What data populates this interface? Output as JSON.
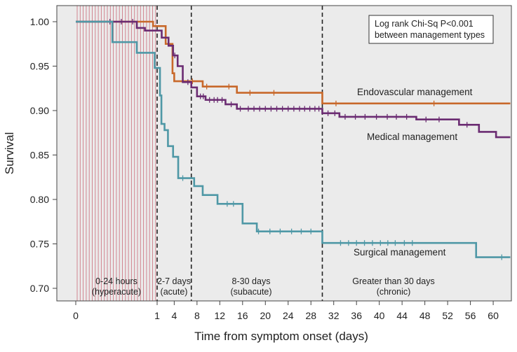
{
  "chart_data": {
    "type": "line",
    "subtype": "kaplan-meier step",
    "xlabel": "Time from symptom onset (days)",
    "ylabel": "Survival",
    "ylim": [
      0.69,
      1.02
    ],
    "y_ticks": [
      0.7,
      0.75,
      0.8,
      0.85,
      0.9,
      0.95,
      1.0
    ],
    "y_tick_labels": [
      "0.70",
      "0.75",
      "0.80",
      "0.85",
      "0.90",
      "0.95",
      "1.00"
    ],
    "x_tick_labels": [
      "0",
      "1",
      "4",
      "8",
      "12",
      "16",
      "20",
      "24",
      "28",
      "32",
      "36",
      "40",
      "44",
      "48",
      "52",
      "56",
      "60"
    ],
    "x_scale_note": "first day (0-1) expanded; days 1-63 on a roughly linear scale",
    "grid": false,
    "background_color": "#ebebeb",
    "hyperacute_hatch_color": "#cf7a86",
    "annotation": {
      "line1": "Log rank Chi-Sq P<0.001",
      "line2": "between management types"
    },
    "periods": [
      {
        "line1": "0-24 hours",
        "line2": "(hyperacute)"
      },
      {
        "line1": "2-7 days",
        "line2": "(acute)"
      },
      {
        "line1": "8-30 days",
        "line2": "(subacute)"
      },
      {
        "line1": "Greater than 30 days",
        "line2": "(chronic)"
      }
    ],
    "period_boundaries_days": [
      1,
      7,
      30
    ],
    "series": [
      {
        "name": "Endovascular management",
        "color": "#c8682a",
        "points": [
          [
            0,
            1.0
          ],
          [
            0.95,
            1.0
          ],
          [
            0.95,
            0.995
          ],
          [
            2.5,
            0.995
          ],
          [
            2.5,
            0.975
          ],
          [
            3.7,
            0.975
          ],
          [
            3.7,
            0.942
          ],
          [
            4.0,
            0.942
          ],
          [
            4.0,
            0.933
          ],
          [
            9.0,
            0.933
          ],
          [
            9.0,
            0.927
          ],
          [
            15.0,
            0.927
          ],
          [
            15.0,
            0.92
          ],
          [
            30.0,
            0.92
          ],
          [
            30.0,
            0.908
          ],
          [
            63,
            0.908
          ]
        ],
        "censor_x": [
          7.2,
          9.7,
          13.6,
          17.3,
          21.5,
          32.4,
          49.6
        ]
      },
      {
        "name": "Medical management",
        "color": "#6b2c72",
        "points": [
          [
            0,
            1.0
          ],
          [
            0.75,
            1.0
          ],
          [
            0.75,
            0.993
          ],
          [
            0.85,
            0.993
          ],
          [
            0.85,
            0.99
          ],
          [
            1.8,
            0.99
          ],
          [
            1.8,
            0.982
          ],
          [
            3.0,
            0.982
          ],
          [
            3.0,
            0.973
          ],
          [
            3.8,
            0.973
          ],
          [
            3.8,
            0.962
          ],
          [
            4.6,
            0.962
          ],
          [
            4.6,
            0.95
          ],
          [
            5.5,
            0.95
          ],
          [
            5.5,
            0.932
          ],
          [
            7.0,
            0.932
          ],
          [
            7.0,
            0.926
          ],
          [
            8.0,
            0.926
          ],
          [
            8.0,
            0.916
          ],
          [
            9.5,
            0.916
          ],
          [
            9.5,
            0.912
          ],
          [
            13.0,
            0.912
          ],
          [
            13.0,
            0.907
          ],
          [
            15.0,
            0.907
          ],
          [
            15.0,
            0.902
          ],
          [
            30.0,
            0.902
          ],
          [
            30.0,
            0.897
          ],
          [
            33.0,
            0.897
          ],
          [
            33.0,
            0.893
          ],
          [
            46.5,
            0.893
          ],
          [
            46.5,
            0.89
          ],
          [
            54.0,
            0.89
          ],
          [
            54.0,
            0.884
          ],
          [
            57.5,
            0.884
          ],
          [
            57.5,
            0.876
          ],
          [
            60.5,
            0.876
          ],
          [
            60.5,
            0.87
          ],
          [
            63,
            0.87
          ]
        ],
        "censor_x": [
          0.42,
          0.56,
          0.7,
          4.1,
          6.4,
          8.6,
          9.1,
          10.2,
          11.0,
          11.6,
          12.4,
          14.0,
          15.6,
          17.0,
          18.0,
          19.0,
          20.0,
          21.0,
          22.0,
          23.0,
          24.0,
          25.0,
          26.0,
          26.9,
          27.8,
          28.7,
          29.4,
          31.0,
          32.2,
          34.0,
          35.8,
          37.5,
          39.5,
          41.4,
          43.0,
          44.8,
          48.2,
          50.5,
          55.4
        ]
      },
      {
        "name": "Surgical management",
        "color": "#4f98a6",
        "points": [
          [
            0,
            1.0
          ],
          [
            0.45,
            1.0
          ],
          [
            0.45,
            0.977
          ],
          [
            0.75,
            0.977
          ],
          [
            0.75,
            0.965
          ],
          [
            0.97,
            0.965
          ],
          [
            0.97,
            0.948
          ],
          [
            1.5,
            0.948
          ],
          [
            1.5,
            0.917
          ],
          [
            1.75,
            0.917
          ],
          [
            1.75,
            0.885
          ],
          [
            2.3,
            0.885
          ],
          [
            2.3,
            0.878
          ],
          [
            2.9,
            0.878
          ],
          [
            2.9,
            0.86
          ],
          [
            3.8,
            0.86
          ],
          [
            3.8,
            0.848
          ],
          [
            4.7,
            0.848
          ],
          [
            4.7,
            0.824
          ],
          [
            7.5,
            0.824
          ],
          [
            7.5,
            0.815
          ],
          [
            9.0,
            0.815
          ],
          [
            9.0,
            0.805
          ],
          [
            11.6,
            0.805
          ],
          [
            11.6,
            0.795
          ],
          [
            16.0,
            0.795
          ],
          [
            16.0,
            0.773
          ],
          [
            18.5,
            0.773
          ],
          [
            18.5,
            0.764
          ],
          [
            30.0,
            0.764
          ],
          [
            30.0,
            0.751
          ],
          [
            57.0,
            0.751
          ],
          [
            57.0,
            0.735
          ],
          [
            63,
            0.735
          ]
        ],
        "censor_x": [
          5.5,
          13.3,
          14.4,
          18.8,
          20.8,
          22.6,
          24.6,
          26.3,
          28.0,
          33.2,
          34.6,
          36.0,
          37.4,
          38.8,
          40.2,
          41.5,
          42.8,
          44.4,
          45.8,
          61.5
        ]
      }
    ],
    "series_labels": [
      "Endovascular management",
      "Medical management",
      "Surgical management"
    ]
  }
}
